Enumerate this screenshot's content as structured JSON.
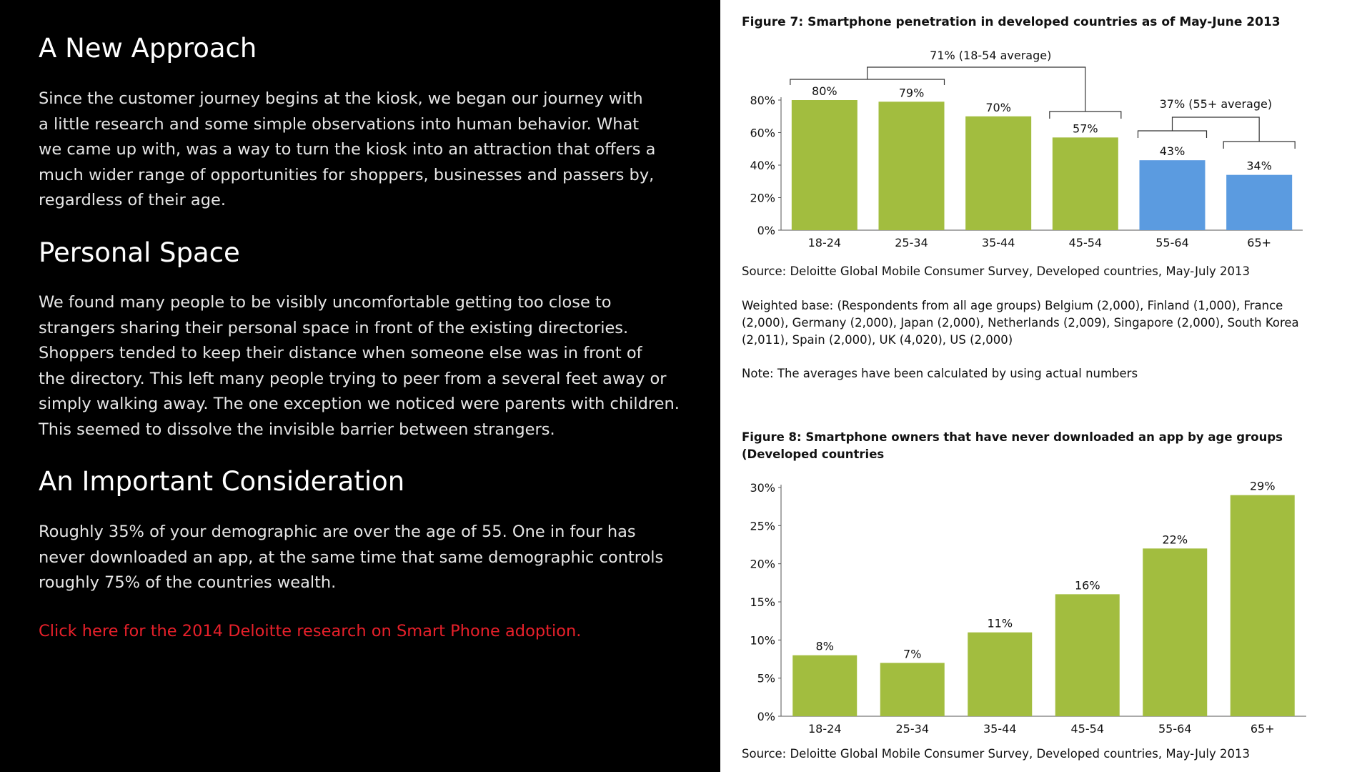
{
  "left": {
    "sections": [
      {
        "title": "A New Approach",
        "lines": [
          "Since the customer journey begins at the kiosk, we began our journey with",
          "a little research and some simple observations into human behavior.  What",
          "we came up with, was a way to turn the kiosk into an attraction that offers a",
          "much wider range of opportunities for shoppers, businesses and passers by,",
          "regardless of their age."
        ]
      },
      {
        "title": "Personal Space",
        "lines": [
          "We found many people to be visibly uncomfortable getting too close to",
          "strangers sharing their personal space in front of the existing directories.",
          "Shoppers tended to keep their distance when someone else was in front of",
          "the directory.  This left many people trying to peer from a several feet away or",
          "simply walking away.  The one exception we noticed were parents with children.",
          "This seemed to dissolve the invisible barrier between strangers."
        ]
      },
      {
        "title": "An Important Consideration",
        "lines": [
          "Roughly 35% of your demographic are over the age of 55. One in four has",
          "never downloaded an app, at the same time that same demographic controls",
          "roughly 75% of the countries wealth."
        ]
      }
    ],
    "link_text": "Click here for the 2014 Deloitte research on Smart Phone adoption.",
    "link_color": "#e8202a"
  },
  "right": {
    "source_text": "Source: Deloitte Global Mobile Consumer Survey, Developed countries, May-July 2013",
    "weighted_base_lines": [
      "Weighted base: (Respondents from all age groups) Belgium (2,000), Finland (1,000), France",
      "(2,000), Germany (2,000), Japan (2,000), Netherlands (2,009), Singapore (2,000), South Korea",
      "(2,011), Spain (2,000), UK (4,020), US (2,000)"
    ],
    "note_text": "Note: The averages have been calculated by using actual numbers",
    "green_color": "#a2bd3f",
    "blue_color": "#5b9be0"
  },
  "chart_data": [
    {
      "type": "bar",
      "title": "Figure 7: Smartphone penetration in developed countries as of May-June 2013",
      "categories": [
        "18-24",
        "25-34",
        "35-44",
        "45-54",
        "55-64",
        "65+"
      ],
      "values": [
        80,
        79,
        70,
        57,
        43,
        34
      ],
      "value_labels": [
        "80%",
        "79%",
        "70%",
        "57%",
        "43%",
        "34%"
      ],
      "bar_colors": [
        "#a2bd3f",
        "#a2bd3f",
        "#a2bd3f",
        "#a2bd3f",
        "#5b9be0",
        "#5b9be0"
      ],
      "yticks": [
        0,
        20,
        40,
        60,
        80
      ],
      "ytick_labels": [
        "0%",
        "20%",
        "40%",
        "60%",
        "80%"
      ],
      "ylim": [
        0,
        80
      ],
      "xlabel": "",
      "ylabel": "",
      "grid": false,
      "annotations": [
        {
          "label": "71% (18-54 average)",
          "categories": [
            "18-24",
            "25-34",
            "35-44",
            "45-54"
          ],
          "value": 71
        },
        {
          "label": "37% (55+ average)",
          "categories": [
            "55-64",
            "65+"
          ],
          "value": 37
        }
      ]
    },
    {
      "type": "bar",
      "title_lines": [
        "Figure 8: Smartphone owners that have never downloaded an app by age groups",
        "(Developed countries"
      ],
      "categories": [
        "18-24",
        "25-34",
        "35-44",
        "45-54",
        "55-64",
        "65+"
      ],
      "values": [
        8,
        7,
        11,
        16,
        22,
        29
      ],
      "value_labels": [
        "8%",
        "7%",
        "11%",
        "16%",
        "22%",
        "29%"
      ],
      "yticks": [
        0,
        5,
        10,
        15,
        20,
        25,
        30
      ],
      "ytick_labels": [
        "0%",
        "5%",
        "10%",
        "15%",
        "20%",
        "25%",
        "30%"
      ],
      "ylim": [
        0,
        30
      ],
      "xlabel": "",
      "ylabel": "",
      "grid": false
    }
  ]
}
